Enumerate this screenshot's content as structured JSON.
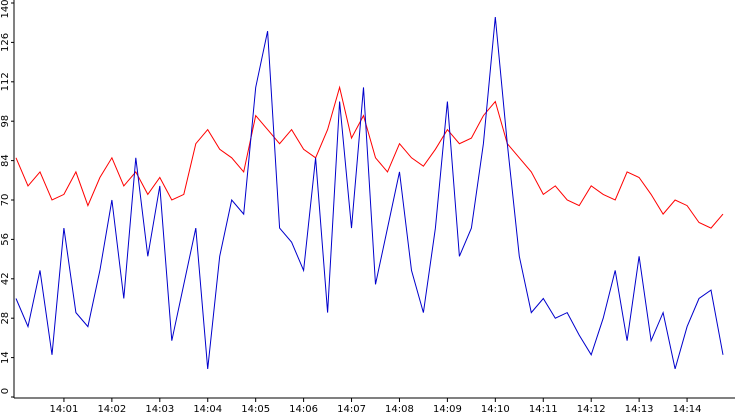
{
  "chart_data": {
    "type": "line",
    "x": [
      "14:00:00",
      "14:00:15",
      "14:00:30",
      "14:00:45",
      "14:01:00",
      "14:01:15",
      "14:01:30",
      "14:01:45",
      "14:02:00",
      "14:02:15",
      "14:02:30",
      "14:02:45",
      "14:03:00",
      "14:03:15",
      "14:03:30",
      "14:03:45",
      "14:04:00",
      "14:04:15",
      "14:04:30",
      "14:04:45",
      "14:05:00",
      "14:05:15",
      "14:05:30",
      "14:05:45",
      "14:06:00",
      "14:06:15",
      "14:06:30",
      "14:06:45",
      "14:07:00",
      "14:07:15",
      "14:07:30",
      "14:07:45",
      "14:08:00",
      "14:08:15",
      "14:08:30",
      "14:08:45",
      "14:09:00",
      "14:09:15",
      "14:09:30",
      "14:09:45",
      "14:10:00",
      "14:10:15",
      "14:10:30",
      "14:10:45",
      "14:11:00",
      "14:11:15",
      "14:11:30",
      "14:11:45",
      "14:12:00",
      "14:12:15",
      "14:12:30",
      "14:12:45",
      "14:13:00",
      "14:13:15",
      "14:13:30",
      "14:13:45",
      "14:14:00",
      "14:14:15",
      "14:14:30",
      "14:14:45"
    ],
    "series": [
      {
        "color": "#ff0000",
        "values": [
          85,
          75,
          80,
          70,
          72,
          80,
          68,
          78,
          85,
          75,
          80,
          72,
          78,
          70,
          72,
          90,
          95,
          88,
          85,
          80,
          100,
          95,
          90,
          95,
          88,
          85,
          95,
          110,
          92,
          100,
          85,
          80,
          90,
          85,
          82,
          88,
          95,
          90,
          92,
          100,
          105,
          90,
          85,
          80,
          72,
          75,
          70,
          68,
          75,
          72,
          70,
          80,
          78,
          72,
          65,
          70,
          68,
          62,
          60,
          65
        ]
      },
      {
        "color": "#0000cc",
        "values": [
          35,
          25,
          45,
          15,
          60,
          30,
          25,
          45,
          70,
          35,
          85,
          50,
          75,
          20,
          40,
          60,
          10,
          50,
          70,
          65,
          110,
          130,
          60,
          55,
          45,
          85,
          30,
          105,
          60,
          110,
          40,
          60,
          80,
          45,
          30,
          60,
          105,
          50,
          60,
          90,
          135,
          90,
          50,
          30,
          35,
          28,
          30,
          22,
          15,
          28,
          45,
          20,
          50,
          20,
          30,
          10,
          25,
          35,
          38,
          15
        ]
      }
    ],
    "xlim": [
      "14:00:00",
      "14:15:00"
    ],
    "xticks": [
      "14:01",
      "14:02",
      "14:03",
      "14:04",
      "14:05",
      "14:06",
      "14:07",
      "14:08",
      "14:09",
      "14:10",
      "14:11",
      "14:12",
      "14:13",
      "14:14"
    ],
    "ylim": [
      0,
      140
    ],
    "yticks": [
      0,
      14,
      28,
      42,
      56,
      70,
      84,
      98,
      112,
      126,
      140
    ]
  }
}
